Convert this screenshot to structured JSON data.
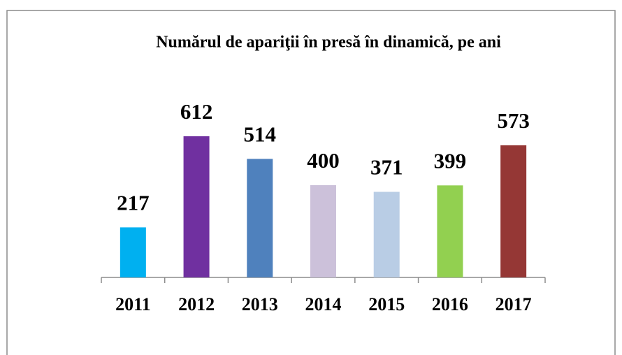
{
  "chart_data": {
    "type": "bar",
    "title": "Numărul de apariţii în presă în dinamică, pe ani",
    "categories": [
      "2011",
      "2012",
      "2013",
      "2014",
      "2015",
      "2016",
      "2017"
    ],
    "values": [
      217,
      612,
      514,
      400,
      371,
      399,
      573
    ],
    "colors": [
      "#00b0f0",
      "#7030a0",
      "#4f81bd",
      "#ccc1da",
      "#b9cde5",
      "#92d050",
      "#953735"
    ]
  }
}
